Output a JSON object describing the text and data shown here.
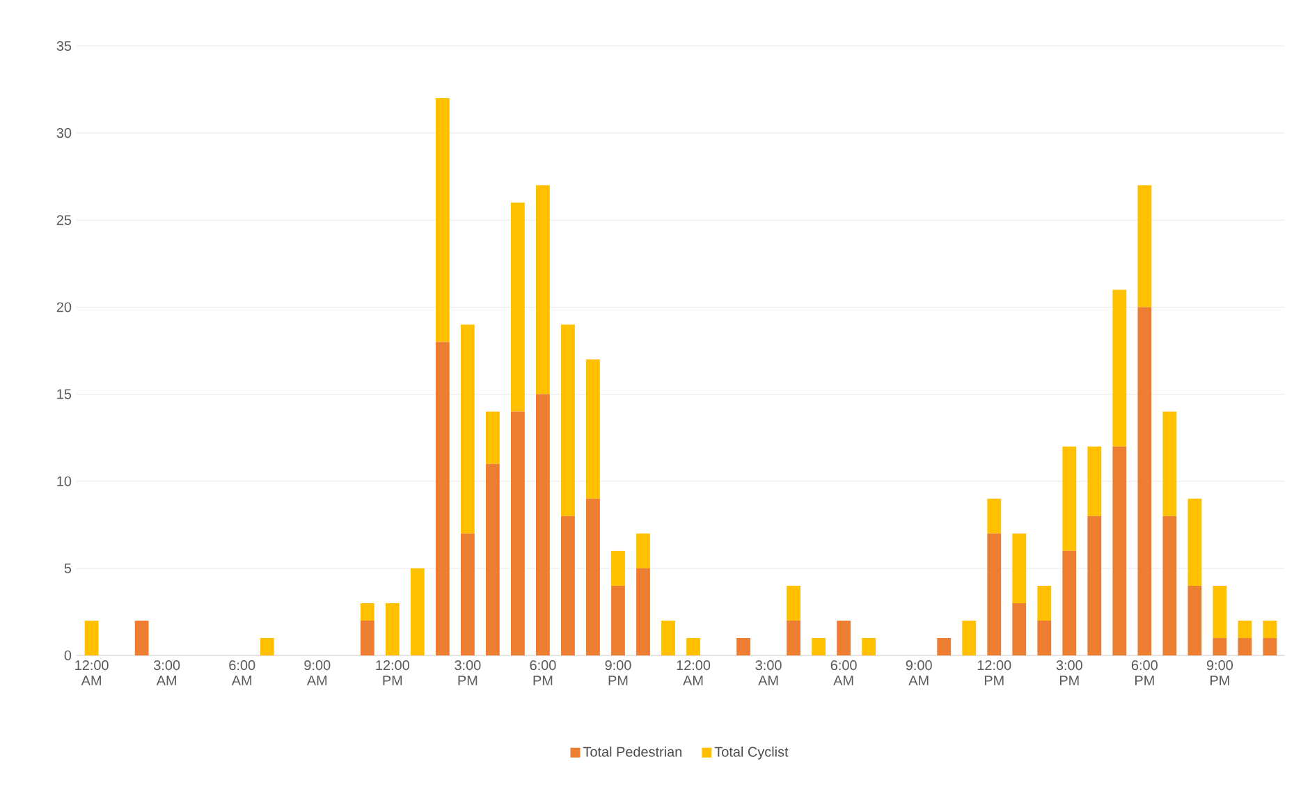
{
  "chart_data": {
    "type": "bar",
    "stacked": true,
    "categories": [
      "12:00 AM",
      null,
      null,
      "3:00 AM",
      null,
      null,
      "6:00 AM",
      null,
      null,
      "9:00 AM",
      null,
      null,
      "12:00 PM",
      null,
      null,
      "3:00 PM",
      null,
      null,
      "6:00 PM",
      null,
      null,
      "9:00 PM",
      null,
      null,
      "12:00 AM",
      null,
      null,
      "3:00 AM",
      null,
      null,
      "6:00 AM",
      null,
      null,
      "9:00 AM",
      null,
      null,
      "12:00 PM",
      null,
      null,
      "3:00 PM",
      null,
      null,
      "6:00 PM",
      null,
      null,
      "9:00 PM",
      null,
      null
    ],
    "series": [
      {
        "name": "Total Pedestrian",
        "color": "#ed7d31",
        "values": [
          0,
          0,
          2,
          0,
          0,
          0,
          0,
          0,
          0,
          0,
          0,
          2,
          0,
          0,
          18,
          7,
          11,
          14,
          15,
          8,
          9,
          4,
          5,
          0,
          0,
          0,
          1,
          0,
          2,
          0,
          2,
          0,
          0,
          0,
          1,
          0,
          7,
          3,
          2,
          6,
          8,
          12,
          20,
          8,
          4,
          1,
          1,
          1
        ]
      },
      {
        "name": "Total Cyclist",
        "color": "#ffc000",
        "values": [
          2,
          0,
          0,
          0,
          0,
          0,
          0,
          1,
          0,
          0,
          0,
          1,
          3,
          5,
          14,
          12,
          3,
          12,
          12,
          11,
          8,
          2,
          2,
          2,
          1,
          0,
          0,
          0,
          2,
          1,
          0,
          1,
          0,
          0,
          0,
          2,
          2,
          4,
          2,
          6,
          4,
          9,
          7,
          6,
          5,
          3,
          1,
          1
        ]
      }
    ],
    "ylim": [
      0,
      35
    ],
    "yticks": [
      0,
      5,
      10,
      15,
      20,
      25,
      30,
      35
    ],
    "grid": "y",
    "legend": "bottom"
  }
}
